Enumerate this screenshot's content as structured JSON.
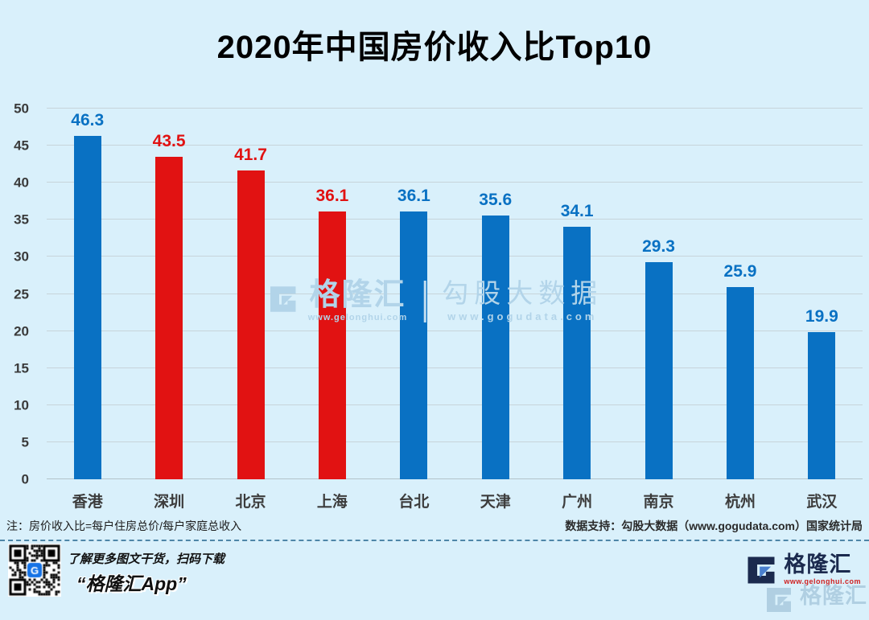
{
  "title": "2020年中国房价收入比Top10",
  "chart_data": {
    "type": "bar",
    "title": "2020年中国房价收入比Top10",
    "categories": [
      "香港",
      "深圳",
      "北京",
      "上海",
      "台北",
      "天津",
      "广州",
      "南京",
      "杭州",
      "武汉"
    ],
    "values": [
      46.3,
      43.5,
      41.7,
      36.1,
      36.1,
      35.6,
      34.1,
      29.3,
      25.9,
      19.9
    ],
    "bar_colors": [
      "blue",
      "red",
      "red",
      "red",
      "blue",
      "blue",
      "blue",
      "blue",
      "blue",
      "blue"
    ],
    "colors": {
      "blue": "#0971c3",
      "red": "#e11212"
    },
    "ylim": [
      0,
      50
    ],
    "yticks": [
      0,
      5,
      10,
      15,
      20,
      25,
      30,
      35,
      40,
      45,
      50
    ],
    "grid": true,
    "legend": null,
    "xlabel": "",
    "ylabel": ""
  },
  "watermark": {
    "brand": "格隆汇",
    "brand_url": "www.gelonghui.com",
    "partner": "勾股大数据",
    "partner_url": "www.gogudata.com"
  },
  "notes": {
    "left": "注：房价收入比=每户住房总价/每户家庭总收入",
    "right": "数据支持：勾股大数据（www.gogudata.com）国家统计局"
  },
  "footer": {
    "caption_line1": "了解更多图文干货，扫码下载",
    "caption_line2": "“格隆汇App”",
    "logo_brand": "格隆汇",
    "logo_url": "www.gelonghui.com"
  },
  "icons": {
    "gelonghui_g_logo": "blocky-G-mark",
    "qr_code": "qr-code-with-center-logo"
  },
  "style_colors": {
    "background": "#d9f0fb",
    "gridline": "#c7d4da",
    "axis_text": "#3a3a3a",
    "watermark": "#b2d4e9",
    "logo_navy": "#1b2a4e",
    "logo_url_red": "#cf1f1f"
  }
}
